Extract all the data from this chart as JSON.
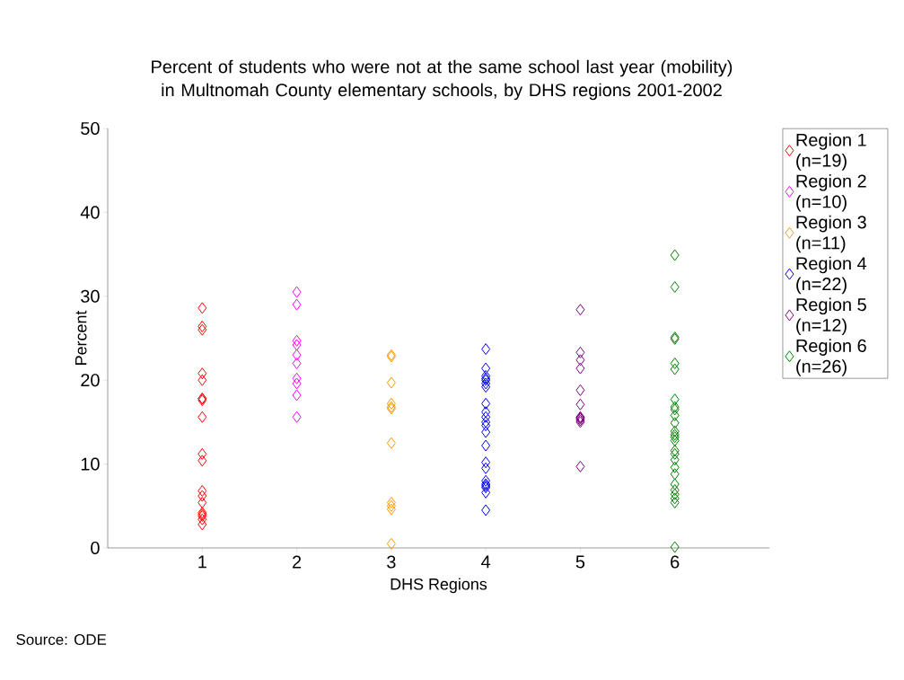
{
  "chart_data": {
    "type": "scatter",
    "title": "Percent of students who were not at the same school last year (mobility) in Multnomah County elementary schools, by DHS regions 2001-2002",
    "xlabel": "DHS Regions",
    "ylabel": "Percent",
    "annotations": [
      "Source: ODE"
    ],
    "xlim": [
      0,
      7
    ],
    "xticks": [
      1,
      2,
      3,
      4,
      5,
      6
    ],
    "ylim": [
      0,
      50
    ],
    "yticks": [
      0,
      10,
      20,
      30,
      40,
      50
    ],
    "grid": false,
    "legend": "right",
    "marker": "diamond",
    "series": [
      {
        "name": "Region 1 (n=19)",
        "color": "#ff0000",
        "x": [
          1,
          1,
          1,
          1,
          1,
          1,
          1,
          1,
          1,
          1,
          1,
          1,
          1,
          1,
          1,
          1,
          1,
          1,
          1
        ],
        "values": [
          28.6,
          26.4,
          26.0,
          20.8,
          20.0,
          17.8,
          17.8,
          17.6,
          15.6,
          11.2,
          10.4,
          6.8,
          6.2,
          5.4,
          4.2,
          4.0,
          3.8,
          3.4,
          2.8
        ]
      },
      {
        "name": "Region 2 (n=10)",
        "color": "#ff00ff",
        "x": [
          2,
          2,
          2,
          2,
          2,
          2,
          2,
          2,
          2,
          2
        ],
        "values": [
          30.5,
          29.0,
          24.7,
          24.2,
          23.0,
          22.0,
          20.2,
          19.6,
          18.2,
          15.6
        ]
      },
      {
        "name": "Region 3 (n=11)",
        "color": "#ff9900",
        "x": [
          3,
          3,
          3,
          3,
          3,
          3,
          3,
          3,
          3,
          3,
          3
        ],
        "values": [
          23.0,
          22.8,
          19.7,
          17.2,
          16.8,
          16.6,
          12.5,
          5.4,
          5.0,
          4.6,
          0.5
        ]
      },
      {
        "name": "Region 4 (n=22)",
        "color": "#0000ff",
        "x": [
          4,
          4,
          4,
          4,
          4,
          4,
          4,
          4,
          4,
          4,
          4,
          4,
          4,
          4,
          4,
          4,
          4,
          4,
          4,
          4,
          4,
          4
        ],
        "values": [
          23.7,
          21.4,
          20.5,
          20.2,
          20.0,
          19.6,
          19.2,
          17.2,
          16.2,
          15.6,
          15.0,
          14.6,
          13.8,
          12.2,
          10.2,
          9.5,
          8.0,
          7.6,
          7.4,
          7.2,
          6.6,
          4.5
        ]
      },
      {
        "name": "Region 5 (n=12)",
        "color": "#800080",
        "x": [
          5,
          5,
          5,
          5,
          5,
          5,
          5,
          5,
          5,
          5,
          5,
          5
        ],
        "values": [
          28.4,
          23.3,
          22.4,
          21.4,
          18.8,
          17.1,
          15.6,
          15.5,
          15.4,
          15.2,
          15.0,
          9.7
        ]
      },
      {
        "name": "Region 6 (n=26)",
        "color": "#008000",
        "x": [
          6,
          6,
          6,
          6,
          6,
          6,
          6,
          6,
          6,
          6,
          6,
          6,
          6,
          6,
          6,
          6,
          6,
          6,
          6,
          6,
          6,
          6,
          6,
          6,
          6,
          6
        ],
        "values": [
          34.9,
          31.1,
          25.1,
          24.9,
          22.0,
          21.3,
          17.7,
          16.8,
          16.5,
          15.8,
          14.9,
          13.9,
          13.5,
          13.2,
          12.8,
          11.6,
          11.2,
          10.5,
          9.6,
          8.8,
          7.6,
          6.9,
          6.4,
          5.9,
          5.4,
          0.1
        ]
      }
    ]
  }
}
